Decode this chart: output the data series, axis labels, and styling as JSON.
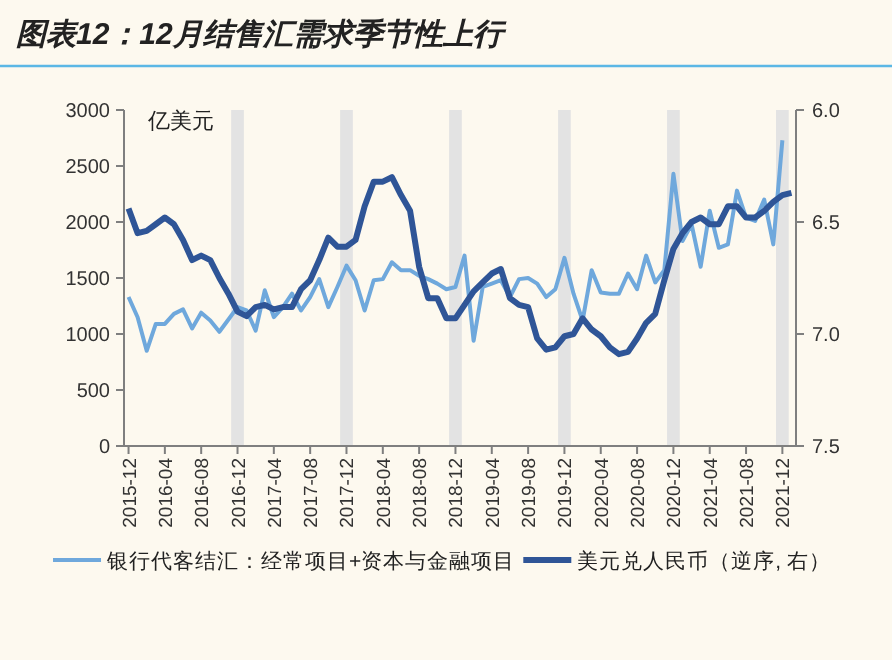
{
  "chart_data": {
    "type": "line",
    "title": "图表12：12月结售汇需求季节性上行",
    "ylabel": "亿美元",
    "categories": [
      "2015-12",
      null,
      null,
      null,
      "2016-04",
      null,
      null,
      null,
      "2016-08",
      null,
      null,
      null,
      "2016-12",
      null,
      null,
      null,
      "2017-04",
      null,
      null,
      null,
      "2017-08",
      null,
      null,
      null,
      "2017-12",
      null,
      null,
      null,
      "2018-04",
      null,
      null,
      null,
      "2018-08",
      null,
      null,
      null,
      "2018-12",
      null,
      null,
      null,
      "2019-04",
      null,
      null,
      null,
      "2019-08",
      null,
      null,
      null,
      "2019-12",
      null,
      null,
      null,
      "2020-04",
      null,
      null,
      null,
      "2020-08",
      null,
      null,
      null,
      "2020-12",
      null,
      null,
      null,
      "2021-04",
      null,
      null,
      null,
      "2021-08",
      null,
      null,
      null,
      "2021-12",
      null
    ],
    "series": [
      {
        "name": "银行代客结汇：经常项目+资本与金融项目",
        "color": "#6fa8dc",
        "values": [
          1330,
          1150,
          850,
          1090,
          1090,
          1180,
          1220,
          1050,
          1190,
          1120,
          1020,
          1130,
          1240,
          1210,
          1030,
          1390,
          1150,
          1240,
          1360,
          1210,
          1330,
          1490,
          1240,
          1420,
          1610,
          1480,
          1210,
          1480,
          1490,
          1640,
          1570,
          1570,
          1520,
          1490,
          1450,
          1400,
          1420,
          1700,
          940,
          1420,
          1450,
          1480,
          1330,
          1490,
          1500,
          1450,
          1330,
          1400,
          1680,
          1360,
          1120,
          1570,
          1370,
          1360,
          1360,
          1540,
          1400,
          1700,
          1460,
          1570,
          2430,
          1830,
          1980,
          1600,
          2100,
          1770,
          1800,
          2280,
          2040,
          2010,
          2200,
          1800,
          2730,
          null
        ]
      },
      {
        "name": "美元兑人民币（逆序, 右）",
        "color": "#2f5597",
        "axis": "y2",
        "values": [
          6.44,
          6.55,
          6.54,
          6.51,
          6.48,
          6.51,
          6.58,
          6.67,
          6.65,
          6.67,
          6.75,
          6.82,
          6.9,
          6.92,
          6.88,
          6.87,
          6.89,
          6.88,
          6.88,
          6.8,
          6.76,
          6.67,
          6.57,
          6.61,
          6.61,
          6.58,
          6.43,
          6.32,
          6.32,
          6.3,
          6.38,
          6.45,
          6.7,
          6.84,
          6.84,
          6.93,
          6.93,
          6.87,
          6.81,
          6.77,
          6.73,
          6.71,
          6.84,
          6.87,
          6.88,
          7.02,
          7.07,
          7.06,
          7.01,
          7.0,
          6.93,
          6.98,
          7.01,
          7.06,
          7.09,
          7.08,
          7.02,
          6.95,
          6.91,
          6.76,
          6.62,
          6.55,
          6.5,
          6.48,
          6.51,
          6.51,
          6.43,
          6.43,
          6.48,
          6.48,
          6.45,
          6.41,
          6.38,
          6.37
        ]
      }
    ],
    "ylim": [
      0,
      3000
    ],
    "yticks": [
      0,
      500,
      1000,
      1500,
      2000,
      2500,
      3000
    ],
    "y2lim": [
      7.5,
      6.0
    ],
    "y2ticks": [
      {
        "value": 6,
        "label": "6.0"
      },
      6.5,
      {
        "value": 7,
        "label": "7.0"
      },
      7.5
    ],
    "bands": [
      {
        "axis": "x",
        "from": "2016-12",
        "to": "2016-12",
        "color": "#e3e3e3"
      },
      {
        "axis": "x",
        "from": "2017-12",
        "to": "2017-12",
        "color": "#e3e3e3"
      },
      {
        "axis": "x",
        "from": "2018-12",
        "to": "2018-12",
        "color": "#e3e3e3"
      },
      {
        "axis": "x",
        "from": "2019-12",
        "to": "2019-12",
        "color": "#e3e3e3"
      },
      {
        "axis": "x",
        "from": "2020-12",
        "to": "2020-12",
        "color": "#e3e3e3"
      },
      {
        "axis": "x",
        "from": "2021-12",
        "to": "2021-12",
        "color": "#e3e3e3"
      }
    ],
    "legend": "bottom",
    "grid": false,
    "marker": "none"
  }
}
